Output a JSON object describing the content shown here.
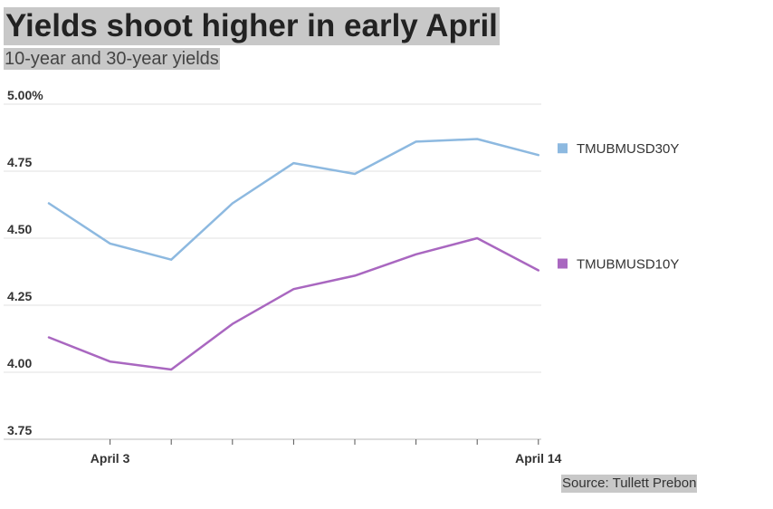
{
  "header": {
    "title": "Yields shoot higher in early April",
    "subtitle": "10-year and 30-year yields"
  },
  "footer": {
    "source": "Source: Tullett Prebon"
  },
  "chart_data": {
    "type": "line",
    "title": "Yields shoot higher in early April",
    "subtitle": "10-year and 30-year yields",
    "xlabel": "",
    "ylabel": "",
    "ylim": [
      3.75,
      5.0
    ],
    "yticks": [
      3.75,
      4.0,
      4.25,
      4.5,
      4.75,
      5.0
    ],
    "ytick_labels": [
      "3.75",
      "4.00",
      "4.25",
      "4.50",
      "4.75",
      "5.00%"
    ],
    "x_labels": [
      "",
      "April 3",
      "",
      "",
      "",
      "",
      "",
      "",
      "April 14"
    ],
    "grid": true,
    "legend_position": "right",
    "series": [
      {
        "name": "TMUBMUSD30Y",
        "color": "#8db9e0",
        "values": [
          4.63,
          4.48,
          4.42,
          4.63,
          4.78,
          4.74,
          4.86,
          4.87,
          4.81
        ]
      },
      {
        "name": "TMUBMUSD10Y",
        "color": "#a967c0",
        "values": [
          4.13,
          4.04,
          4.01,
          4.18,
          4.31,
          4.36,
          4.44,
          4.5,
          4.38
        ]
      }
    ]
  }
}
